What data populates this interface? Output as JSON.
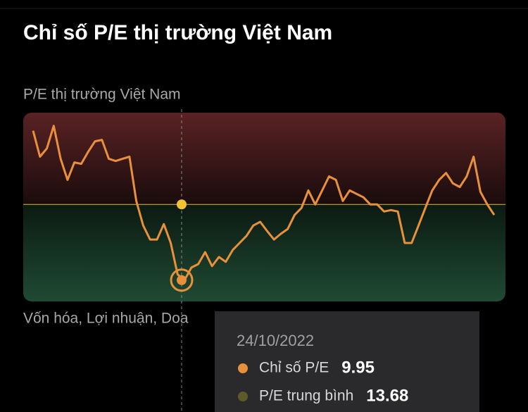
{
  "chart_data": {
    "type": "line",
    "title": "Chỉ số P/E thị trường Việt Nam",
    "subtitle": "P/E thị trường Việt Nam",
    "footnote": "Vốn hóa, Lợi nhuận, Doa",
    "ylim": [
      8.9,
      18.2
    ],
    "series": [
      {
        "color": "#e8913a",
        "values": [
          17.31,
          16.03,
          16.44,
          17.55,
          15.93,
          14.89,
          15.75,
          15.68,
          16.27,
          16.79,
          16.86,
          15.93,
          15.82,
          15.93,
          16.03,
          13.85,
          12.64,
          11.95,
          11.95,
          12.71,
          11.78,
          10.23,
          9.95,
          10.57,
          10.74,
          11.33,
          10.64,
          11.09,
          10.85,
          11.43,
          11.78,
          12.13,
          12.64,
          12.82,
          12.37,
          11.95,
          12.23,
          12.47,
          13.16,
          13.51,
          14.37,
          13.68,
          14.37,
          15.06,
          14.89,
          13.85,
          14.37,
          14.2,
          14.03,
          13.68,
          13.68,
          13.33,
          13.4,
          13.33,
          11.78,
          11.78,
          12.64,
          13.51,
          14.37,
          14.89,
          15.23,
          14.72,
          14.54,
          15.06,
          16.03,
          14.3,
          13.68,
          13.16
        ]
      }
    ],
    "tooltip": {
      "date": "24/10/2022",
      "items": [
        {
          "name": "Chỉ số P/E",
          "value": 9.95,
          "color": "#e8913a"
        },
        {
          "name": "P/E trung bình",
          "value": 13.68,
          "color": "#5c5a28"
        }
      ]
    }
  }
}
